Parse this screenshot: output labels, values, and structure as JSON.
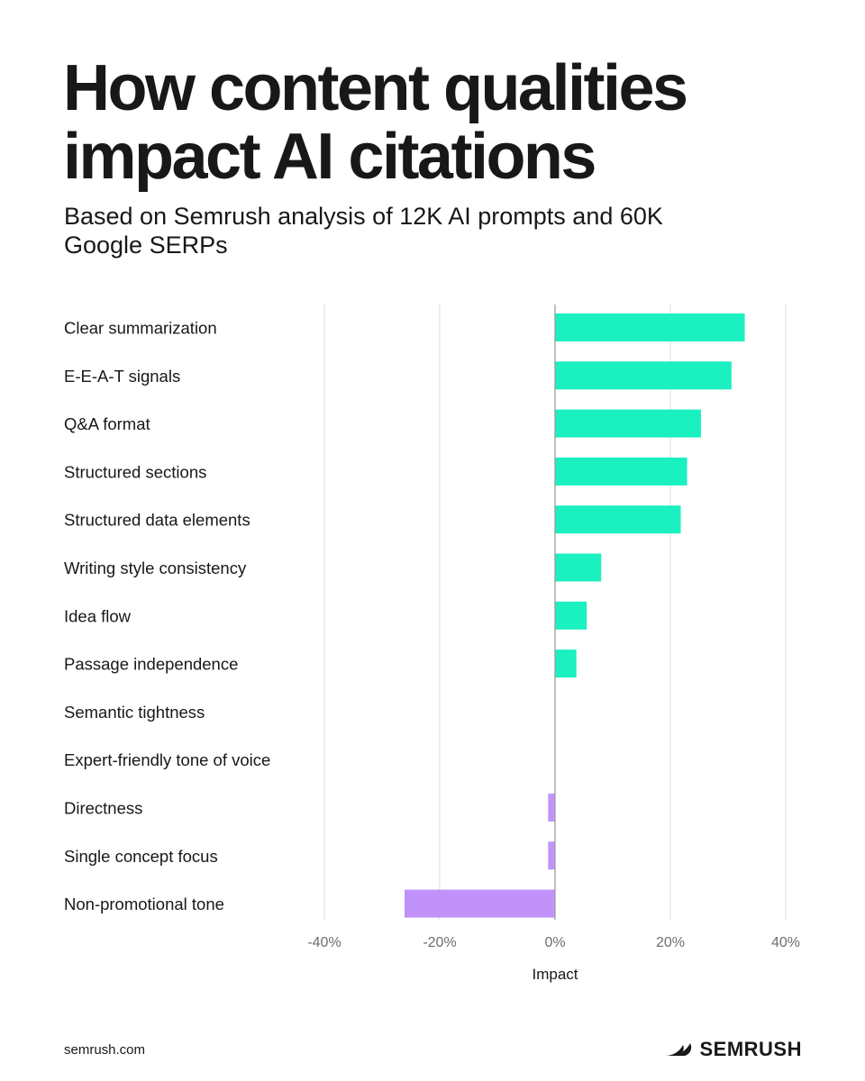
{
  "header": {
    "title": "How content qualities impact AI citations",
    "subtitle": "Based on Semrush analysis of 12K AI prompts and 60K Google SERPs"
  },
  "footer": {
    "url": "semrush.com",
    "brand": "SEMRUSH"
  },
  "colors": {
    "positive": "#1af0c0",
    "negative": "#c292fb",
    "grid": "#e2e2e2",
    "zero_line": "#9b9da0"
  },
  "chart_data": {
    "type": "bar",
    "orientation": "horizontal",
    "title": "How content qualities impact AI citations",
    "subtitle": "Based on Semrush analysis of 12K AI prompts and 60K Google SERPs",
    "xlabel": "Impact",
    "ylabel": "",
    "xlim": [
      -40,
      40
    ],
    "xticks": [
      -40,
      -20,
      0,
      20,
      40
    ],
    "xtick_labels": [
      "-40%",
      "-20%",
      "0%",
      "20%",
      "40%"
    ],
    "grid": true,
    "categories": [
      "Clear summarization",
      "E-E-A-T signals",
      "Q&A format",
      "Structured sections",
      "Structured data elements",
      "Writing style consistency",
      "Idea flow",
      "Passage independence",
      "Semantic tightness",
      "Expert-friendly tone of voice",
      "Directness",
      "Single concept focus",
      "Non-promotional tone"
    ],
    "values": [
      32.9,
      30.6,
      25.3,
      22.9,
      21.8,
      8.0,
      5.5,
      3.7,
      0,
      0,
      -1.2,
      -1.2,
      -26.1
    ]
  }
}
